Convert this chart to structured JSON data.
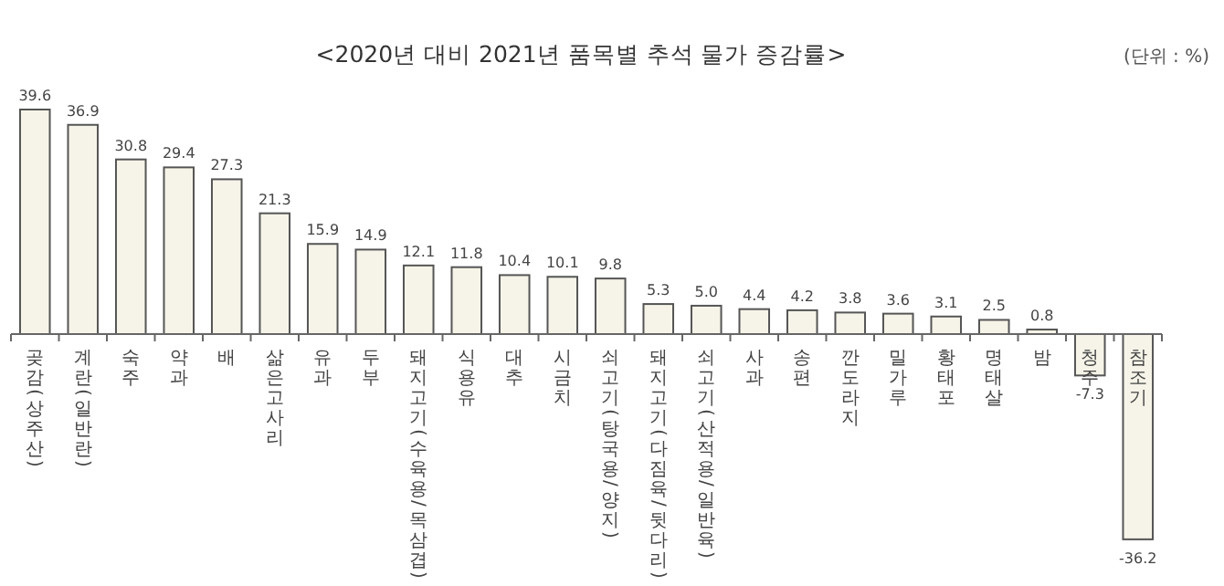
{
  "chart_data": {
    "type": "bar",
    "title": "<2020년 대비 2021년 품목별 추석 물가 증감률>",
    "annotations": [
      "(단위 : %)"
    ],
    "categories": [
      "곶감(상주산)",
      "계란(일반란)",
      "숙주",
      "약과",
      "배",
      "삶은고사리",
      "유과",
      "두부",
      "돼지고기(수육용/목삼겹)",
      "식용유",
      "대추",
      "시금치",
      "쇠고기(탕국용/양지)",
      "돼지고기(다짐육/뒷다리)",
      "쇠고기(산적용/일반육)",
      "사과",
      "송편",
      "깐도라지",
      "밀가루",
      "황태포",
      "명태살",
      "밤",
      "청주",
      "참조기"
    ],
    "values": [
      39.6,
      36.9,
      30.8,
      29.4,
      27.3,
      21.3,
      15.9,
      14.9,
      12.1,
      11.8,
      10.4,
      10.1,
      9.8,
      5.3,
      5.0,
      4.4,
      4.2,
      3.8,
      3.6,
      3.1,
      2.5,
      0.8,
      -7.3,
      -36.2
    ],
    "color": "#f6f4e8",
    "value_labels": [
      "39.6",
      "36.9",
      "30.8",
      "29.4",
      "27.3",
      "21.3",
      "15.9",
      "14.9",
      "12.1",
      "11.8",
      "10.4",
      "10.1",
      "9.8",
      "5.3",
      "5.0",
      "4.4",
      "4.2",
      "3.8",
      "3.6",
      "3.1",
      "2.5",
      "0.8",
      "-7.3",
      "-36.2"
    ]
  }
}
